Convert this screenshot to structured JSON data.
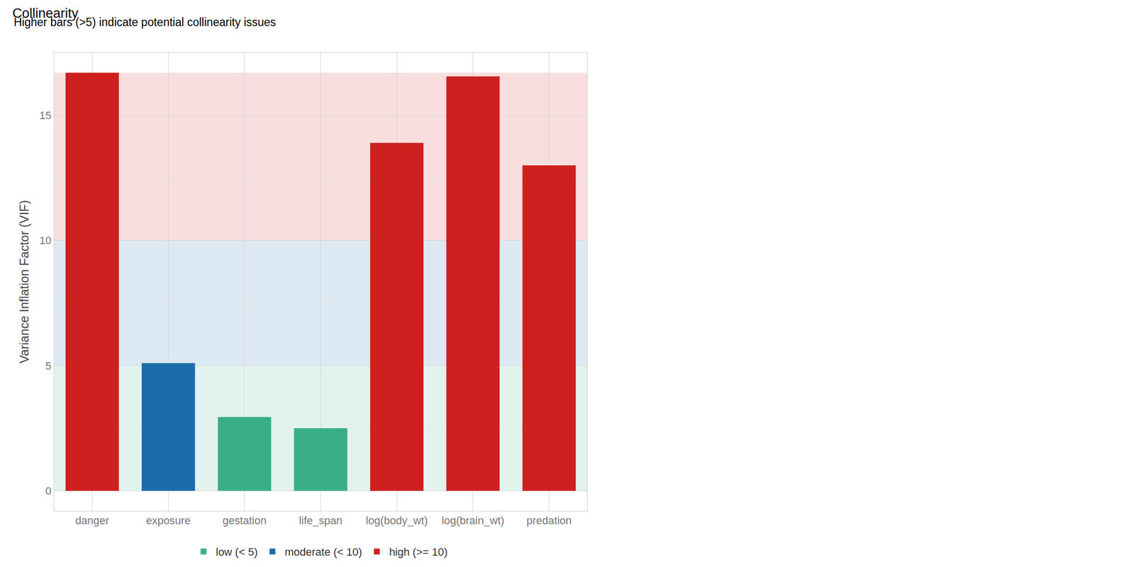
{
  "chart_data": {
    "type": "bar",
    "title": "Collinearity",
    "subtitle": "Higher bars (>5) indicate potential collinearity issues",
    "y_label": "Variance Inflation Factor (VIF)",
    "categories": [
      "danger",
      "exposure",
      "gestation",
      "life_span",
      "log(body_wt)",
      "log(brain_wt)",
      "predation"
    ],
    "series": [
      {
        "name": "low (< 5)",
        "color": "#3aaf85",
        "band": [
          0,
          5
        ],
        "values": [
          null,
          null,
          2.95,
          2.5,
          null,
          null,
          null
        ]
      },
      {
        "name": "moderate (< 10)",
        "color": "#1b6ca8",
        "band": [
          5,
          10
        ],
        "values": [
          null,
          5.1,
          null,
          null,
          null,
          null,
          null
        ]
      },
      {
        "name": "high (>= 10)",
        "color": "#cd201f",
        "band": [
          10,
          16.7
        ],
        "values": [
          16.7,
          null,
          null,
          null,
          13.9,
          16.55,
          13.0
        ]
      }
    ],
    "ylim": [
      -0.8,
      17.5
    ],
    "yticks": [
      0,
      5,
      10,
      15
    ],
    "grid": true,
    "legend": "bottom"
  }
}
